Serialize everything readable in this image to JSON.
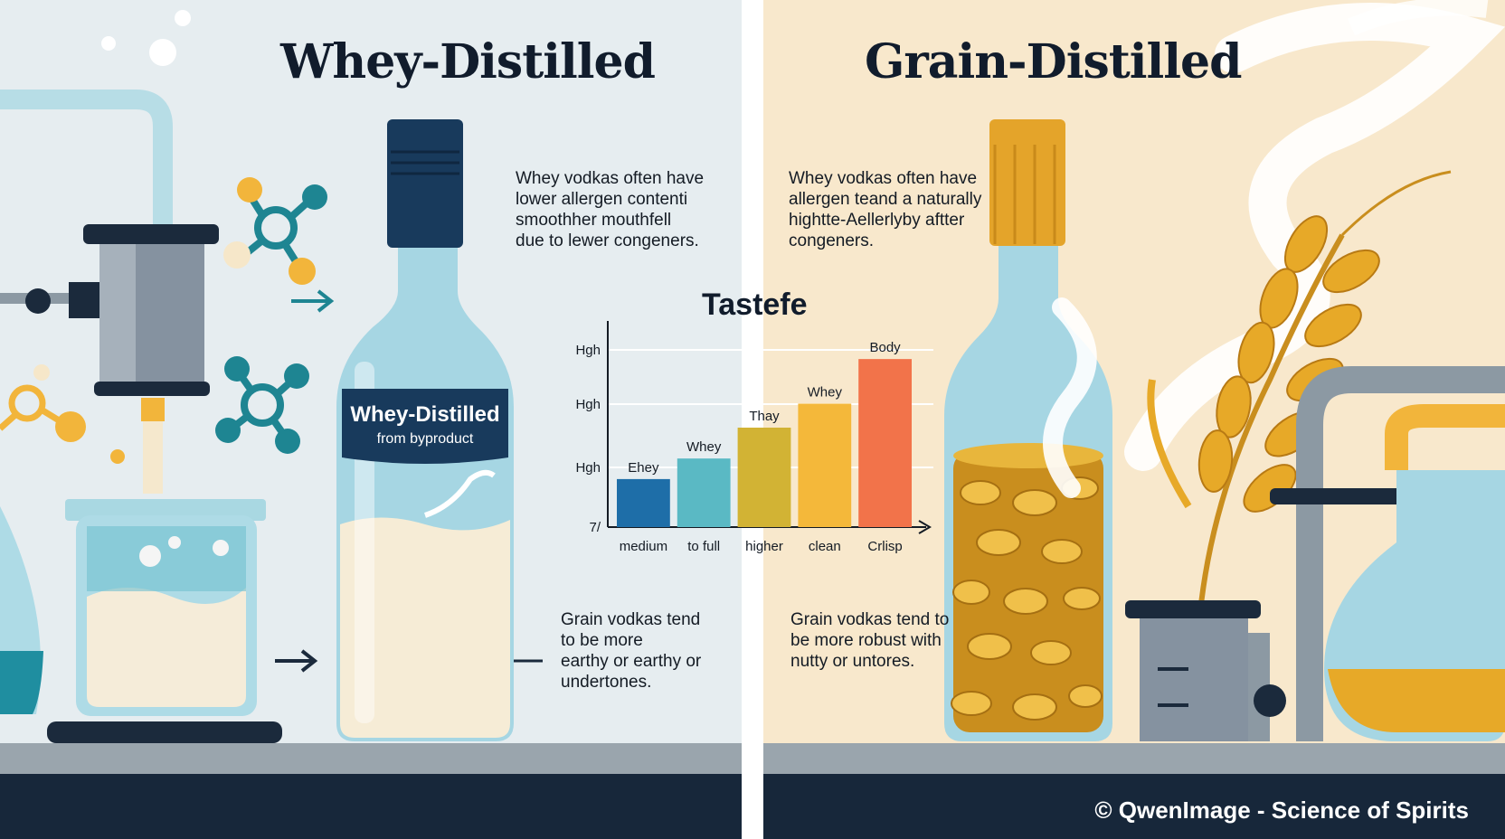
{
  "left": {
    "title": "Whey-Distilled",
    "label_title": "Whey-Distilled",
    "label_sub": "from byproduct",
    "note_lines": [
      "Whey vodkas often have",
      "lower allergen contenti",
      "smoothher mouthfell",
      "due to lewer congeners."
    ]
  },
  "right": {
    "title": "Grain-Distilled",
    "note_lines": [
      "Whey vodkas often have",
      "allergen teand a naturally",
      "hightte-Aellerlyby aftter",
      "congeners."
    ]
  },
  "center_bottom": {
    "note_lines": [
      "Grain vodkas tend",
      "to be more",
      "earthy or earthy or",
      "undertones."
    ]
  },
  "right_bottom": {
    "note_lines": [
      "Grain vodkas tend to",
      "be more robust with",
      "nutty or untores."
    ]
  },
  "chart_data": {
    "type": "bar",
    "title": "Tastefe",
    "categories": [
      "medium",
      "to full",
      "higher",
      "clean",
      "Crlisp"
    ],
    "bar_labels": [
      "Ehey",
      "Whey",
      "Thay",
      "Whey",
      "Body"
    ],
    "values": [
      1.4,
      2.0,
      2.9,
      3.6,
      4.9
    ],
    "colors": [
      "#1e6ea8",
      "#5ab9c4",
      "#d2b334",
      "#f4b83a",
      "#f2734a"
    ],
    "y_tick_labels": [
      "7/",
      "Hgh",
      "Hgh",
      "Hgh"
    ],
    "ylim": [
      0,
      5.8
    ],
    "grid": true
  },
  "credit": "© QwenImage - Science of Spirits"
}
